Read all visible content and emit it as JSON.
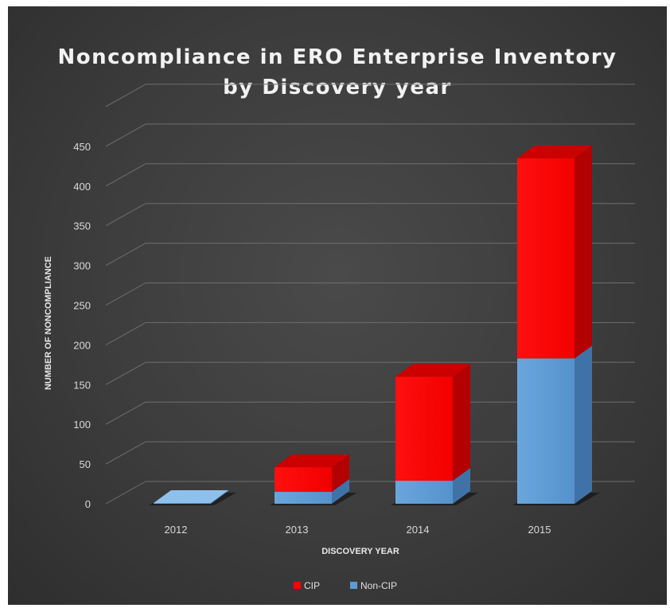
{
  "chart_data": {
    "type": "bar",
    "stacked": true,
    "three_d": true,
    "title": "Noncompliance in ERO Enterprise Inventory by Discovery year",
    "title_lines": [
      "Noncompliance in ERO Enterprise Inventory",
      "by Discovery year"
    ],
    "xlabel": "DISCOVERY YEAR",
    "ylabel": "NUMBER OF NONCOMPLIANCE",
    "categories": [
      "2012",
      "2013",
      "2014",
      "2015"
    ],
    "ylim": [
      0,
      450
    ],
    "yticks": [
      "0",
      "50",
      "100",
      "150",
      "200",
      "250",
      "300",
      "350",
      "400",
      "450"
    ],
    "grid": true,
    "legend_position": "bottom",
    "series": [
      {
        "name": "Non-CIP",
        "values": [
          1,
          15,
          29,
          183
        ],
        "color": "#5b9bd5"
      },
      {
        "name": "CIP",
        "values": [
          0,
          31,
          131,
          252
        ],
        "color": "#ff0000"
      }
    ]
  }
}
